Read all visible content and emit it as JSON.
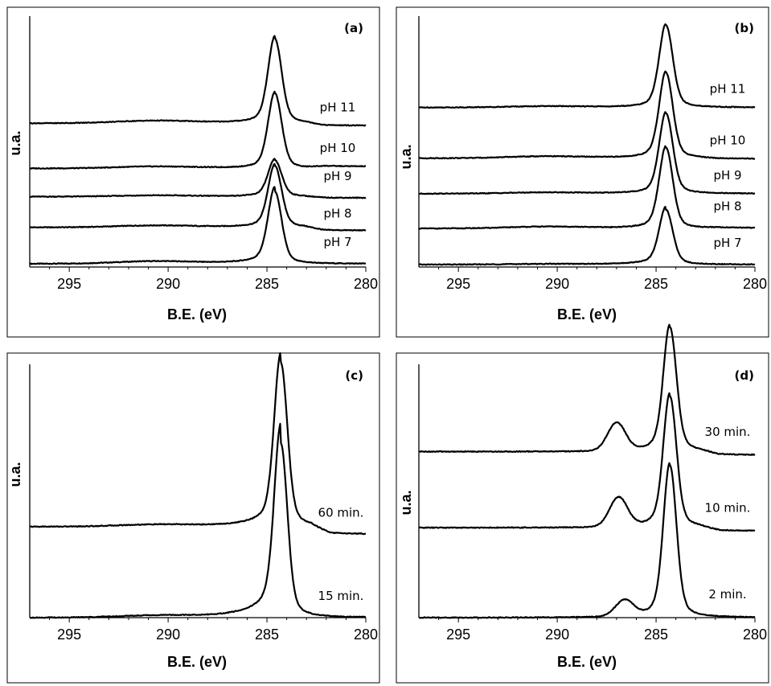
{
  "figure": {
    "panels": [
      {
        "tag": "(a)",
        "ylabel": "u.a.",
        "xlabel": "B.E. (eV)"
      },
      {
        "tag": "(b)",
        "ylabel": "u.a.",
        "xlabel": "B.E. (eV)"
      },
      {
        "tag": "(c)",
        "ylabel": "u.a.",
        "xlabel": "B.E. (eV)"
      },
      {
        "tag": "(d)",
        "ylabel": "u.a.",
        "xlabel": "B.E. (eV)"
      }
    ]
  },
  "chart_data": [
    {
      "type": "line",
      "panel": "(a)",
      "xlabel": "B.E. (eV)",
      "ylabel": "u.a.",
      "xlim": [
        297,
        280
      ],
      "x_reversed": true,
      "x_ticks": [
        "295",
        "290",
        "285",
        "280"
      ],
      "x_tick_values": [
        295,
        290,
        285,
        280
      ],
      "y_ticks_shown": false,
      "series": [
        {
          "name": "pH 7",
          "baseline": 0.0,
          "tail": 0.0,
          "peak_x": 284.6,
          "peak_height": 1.15,
          "peak_width": 0.33,
          "bump_x": 290.6,
          "bump_height": 0.04,
          "rise": 0.08
        },
        {
          "name": "pH 8",
          "baseline": 0.58,
          "tail": 0.53,
          "peak_x": 284.6,
          "peak_height": 0.98,
          "peak_width": 0.33,
          "bump_x": 290.6,
          "bump_height": 0.03,
          "rise": 0.03
        },
        {
          "name": "pH 9",
          "baseline": 1.07,
          "tail": 1.05,
          "peak_x": 284.6,
          "peak_height": 0.58,
          "peak_width": 0.33,
          "bump_x": 290.6,
          "bump_height": 0.02,
          "rise": 0.02
        },
        {
          "name": "pH 10",
          "baseline": 1.52,
          "tail": 1.55,
          "peak_x": 284.6,
          "peak_height": 1.2,
          "peak_width": 0.33,
          "bump_x": 290.6,
          "bump_height": 0.03,
          "rise": 0.02
        },
        {
          "name": "pH 11",
          "baseline": 2.24,
          "tail": 2.2,
          "peak_x": 284.6,
          "peak_height": 1.35,
          "peak_width": 0.33,
          "bump_x": 290.6,
          "bump_height": 0.04,
          "rise": 0.04
        }
      ]
    },
    {
      "type": "line",
      "panel": "(b)",
      "xlabel": "B.E. (eV)",
      "ylabel": "u.a.",
      "xlim": [
        297,
        280
      ],
      "x_reversed": true,
      "x_ticks": [
        "295",
        "290",
        "285",
        "280"
      ],
      "x_tick_values": [
        295,
        290,
        285,
        280
      ],
      "y_ticks_shown": false,
      "series": [
        {
          "name": "pH 7",
          "baseline": 0.0,
          "tail": 0.0,
          "peak_x": 284.5,
          "peak_height": 0.9,
          "peak_width": 0.33,
          "bump_x": 290.5,
          "bump_height": 0.01,
          "rise": 0.05
        },
        {
          "name": "pH 8",
          "baseline": 0.59,
          "tail": 0.6,
          "peak_x": 284.5,
          "peak_height": 1.32,
          "peak_width": 0.33,
          "bump_x": 290.5,
          "bump_height": 0.03,
          "rise": 0.03
        },
        {
          "name": "pH 9",
          "baseline": 1.16,
          "tail": 1.16,
          "peak_x": 284.5,
          "peak_height": 1.32,
          "peak_width": 0.33,
          "bump_x": 290.5,
          "bump_height": 0.02,
          "rise": 0.02
        },
        {
          "name": "pH 10",
          "baseline": 1.74,
          "tail": 1.73,
          "peak_x": 284.5,
          "peak_height": 1.4,
          "peak_width": 0.33,
          "bump_x": 290.5,
          "bump_height": 0.03,
          "rise": 0.03
        },
        {
          "name": "pH 11",
          "baseline": 2.57,
          "tail": 2.57,
          "peak_x": 284.5,
          "peak_height": 1.35,
          "peak_width": 0.33,
          "bump_x": 290.5,
          "bump_height": 0.02,
          "rise": 0.02
        }
      ]
    },
    {
      "type": "line",
      "panel": "(c)",
      "xlabel": "B.E. (eV)",
      "ylabel": "u.a.",
      "xlim": [
        297,
        280
      ],
      "x_reversed": true,
      "x_ticks": [
        "295",
        "290",
        "285",
        "280"
      ],
      "x_tick_values": [
        295,
        290,
        285,
        280
      ],
      "y_ticks_shown": false,
      "series": [
        {
          "name": "15 min.",
          "baseline": 0.0,
          "tail": 0.0,
          "peak_x": 284.3,
          "peak_height": 2.55,
          "peak_width": 0.32,
          "bump_x": 290.5,
          "bump_height": 0.03,
          "rise": 0.3
        },
        {
          "name": "60 min.",
          "baseline": 1.33,
          "tail": 1.22,
          "peak_x": 284.3,
          "peak_height": 2.4,
          "peak_width": 0.32,
          "bump_x": 290.5,
          "bump_height": 0.03,
          "rise": 0.15
        }
      ]
    },
    {
      "type": "line",
      "panel": "(d)",
      "xlabel": "B.E. (eV)",
      "ylabel": "u.a.",
      "xlim": [
        297,
        280
      ],
      "x_reversed": true,
      "x_ticks": [
        "295",
        "290",
        "285",
        "280"
      ],
      "x_tick_values": [
        295,
        290,
        285,
        280
      ],
      "y_ticks_shown": false,
      "series": [
        {
          "name": "2 min.",
          "baseline": 0.0,
          "tail": 0.0,
          "peak_x": 284.3,
          "peak_height": 2.2,
          "peak_width": 0.32,
          "shoulder_x": 286.6,
          "shoulder_height": 0.23,
          "rise": 0.05
        },
        {
          "name": "10 min.",
          "baseline": 1.3,
          "tail": 1.25,
          "peak_x": 284.3,
          "peak_height": 1.9,
          "peak_width": 0.32,
          "shoulder_x": 286.9,
          "shoulder_height": 0.42,
          "rise": 0.06
        },
        {
          "name": "30 min.",
          "baseline": 2.4,
          "tail": 2.35,
          "peak_x": 284.3,
          "peak_height": 1.8,
          "peak_width": 0.32,
          "shoulder_x": 287.0,
          "shoulder_height": 0.4,
          "rise": 0.05
        }
      ]
    }
  ]
}
